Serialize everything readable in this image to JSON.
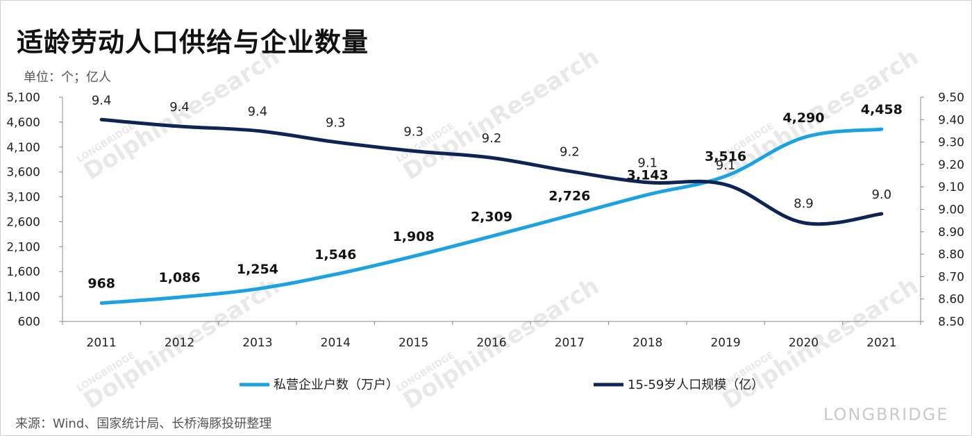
{
  "title": "适龄劳动人口供给与企业数量",
  "unit_label": "单位：个；亿人",
  "source": "来源：Wind、国家统计局、长桥海豚投研整理",
  "watermark": {
    "brand": "LONGBRIDGE",
    "name": "DolphinResearch"
  },
  "colors": {
    "enterprises": "#1aa3e0",
    "population": "#0e2455"
  },
  "chart_data": {
    "type": "line",
    "categories": [
      "2011",
      "2012",
      "2013",
      "2014",
      "2015",
      "2016",
      "2017",
      "2018",
      "2019",
      "2020",
      "2021"
    ],
    "series": [
      {
        "name": "私营企业户数（万户）",
        "axis": "left",
        "values": [
          968,
          1086,
          1254,
          1546,
          1908,
          2309,
          2726,
          3143,
          3516,
          4290,
          4458
        ],
        "labels": [
          "968",
          "1,086",
          "1,254",
          "1,546",
          "1,908",
          "2,309",
          "2,726",
          "3,143",
          "3,516",
          "4,290",
          "4,458"
        ]
      },
      {
        "name": "15-59岁人口规模（亿）",
        "axis": "right",
        "values": [
          9.4,
          9.37,
          9.35,
          9.3,
          9.26,
          9.23,
          9.17,
          9.12,
          9.11,
          8.94,
          8.98
        ],
        "labels": [
          "9.4",
          "9.4",
          "9.4",
          "9.3",
          "9.3",
          "9.2",
          "9.2",
          "9.1",
          "9.1",
          "8.9",
          "9.0"
        ]
      }
    ],
    "y_left": {
      "min": 600,
      "max": 5100,
      "ticks": [
        "600",
        "1,100",
        "1,600",
        "2,100",
        "2,600",
        "3,100",
        "3,600",
        "4,100",
        "4,600",
        "5,100"
      ]
    },
    "y_right": {
      "min": 8.5,
      "max": 9.5,
      "ticks": [
        "8.50",
        "8.60",
        "8.70",
        "8.80",
        "8.90",
        "9.00",
        "9.10",
        "9.20",
        "9.30",
        "9.40",
        "9.50"
      ]
    },
    "grid": false,
    "legend": "bottom"
  }
}
